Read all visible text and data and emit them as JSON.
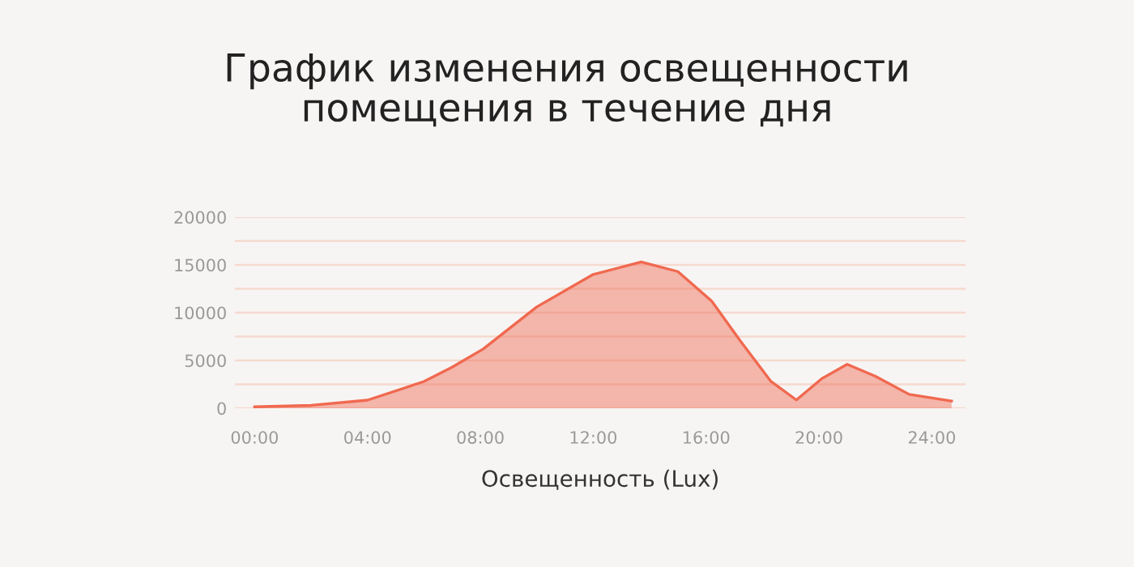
{
  "chart_data": {
    "type": "area",
    "title": "График изменения освещенности\nпомещения в течение дня",
    "xlabel": "Освещенность (Lux)",
    "series": [
      {
        "color": "#f0694f",
        "x": [
          0,
          2,
          4,
          6,
          7,
          8.1,
          10,
          12,
          13.7,
          15,
          16.2,
          17.2,
          18.3,
          19.2,
          20.1,
          21,
          22,
          23.2,
          24.7
        ],
        "values": [
          150,
          300,
          850,
          2800,
          4300,
          6200,
          10600,
          14000,
          15300,
          14300,
          11200,
          7100,
          2800,
          870,
          3100,
          4600,
          3350,
          1450,
          750
        ]
      }
    ],
    "xlim": [
      -0.7,
      25.2
    ],
    "xticks": [
      {
        "value": 0,
        "label": "00:00"
      },
      {
        "value": 4,
        "label": "04:00"
      },
      {
        "value": 8,
        "label": "08:00"
      },
      {
        "value": 12,
        "label": "12:00"
      },
      {
        "value": 16,
        "label": "16:00"
      },
      {
        "value": 20,
        "label": "20:00"
      },
      {
        "value": 24,
        "label": "24:00"
      }
    ],
    "ylim": [
      0,
      20000
    ],
    "yticks": [
      0,
      {
        "value": 2500,
        "label": null
      },
      5000,
      {
        "value": 7500,
        "label": null
      },
      10000,
      {
        "value": 12500,
        "label": null
      },
      15000,
      {
        "value": 17500,
        "label": null
      },
      20000
    ],
    "grid": "y"
  }
}
